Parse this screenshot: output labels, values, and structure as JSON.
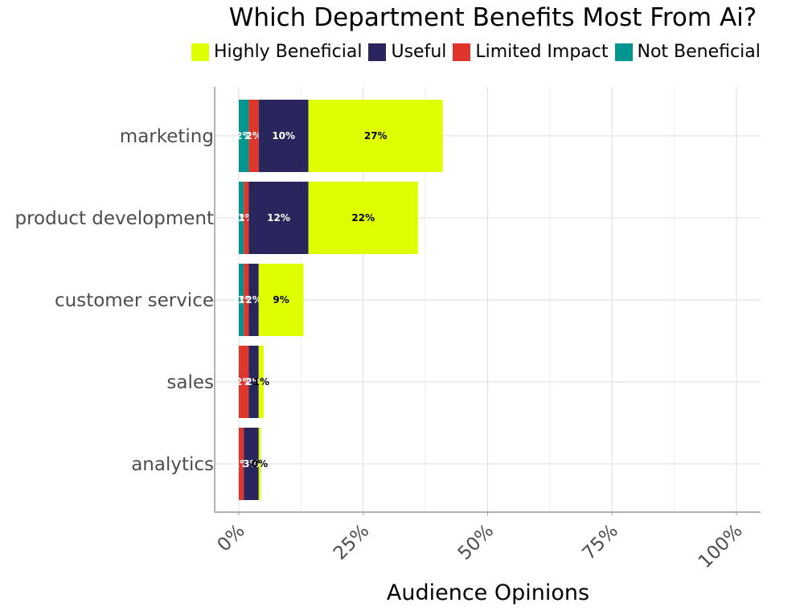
{
  "chart_data": {
    "type": "bar",
    "orientation": "horizontal",
    "stacked": true,
    "title": "Which Department Benefits Most From Ai?",
    "xlabel": "Audience Opinions",
    "ylabel": "",
    "xlim": [
      0,
      100
    ],
    "x_ticks": [
      "0%",
      "25%",
      "50%",
      "75%",
      "100%"
    ],
    "grid": true,
    "legend_position": "top",
    "categories": [
      "marketing",
      "product development",
      "customer service",
      "sales",
      "analytics"
    ],
    "series": [
      {
        "name": "Not Beneficial",
        "color": "#00968f",
        "values": [
          2,
          1,
          1,
          0,
          0
        ],
        "labels": [
          "2%",
          "1%",
          "1%",
          "",
          "0%"
        ]
      },
      {
        "name": "Limited Impact",
        "color": "#e0352b",
        "values": [
          2,
          1,
          1,
          2,
          1
        ],
        "labels": [
          "2%",
          "1%",
          "1%",
          "2%",
          "1%"
        ]
      },
      {
        "name": "Useful",
        "color": "#28265c",
        "values": [
          10,
          12,
          2,
          2,
          3
        ],
        "labels": [
          "10%",
          "12%",
          "2%",
          "2%",
          "3%"
        ]
      },
      {
        "name": "Highly Beneficial",
        "color": "#dfff00",
        "values": [
          27,
          22,
          9,
          1,
          0.4
        ],
        "labels": [
          "27%",
          "22%",
          "9%",
          "1%",
          "0%"
        ]
      }
    ],
    "legend_order": [
      "Highly Beneficial",
      "Useful",
      "Limited Impact",
      "Not Beneficial"
    ]
  }
}
